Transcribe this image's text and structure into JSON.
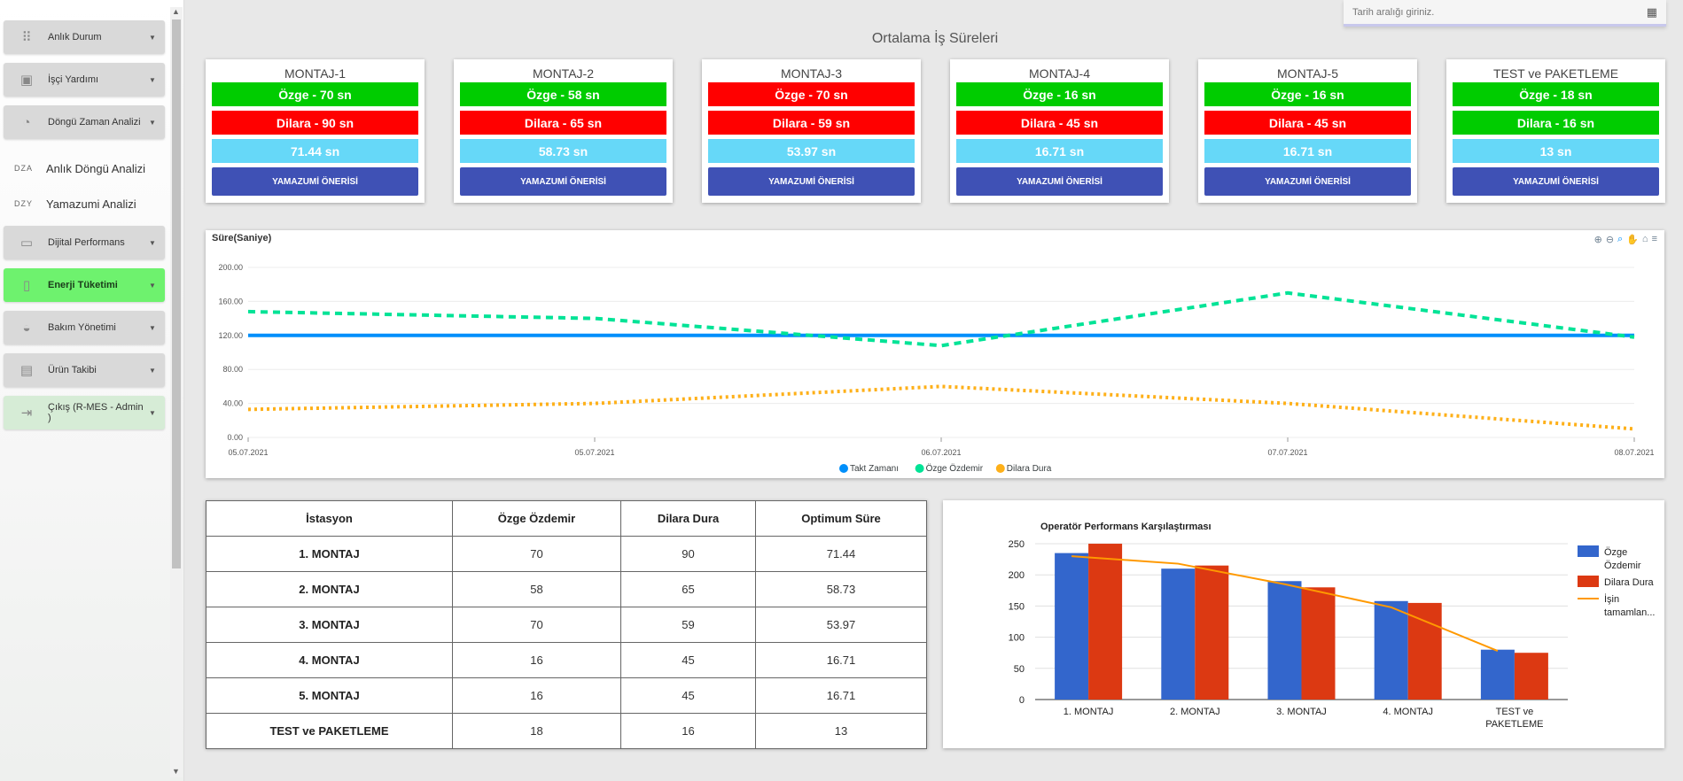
{
  "sidebar": {
    "items": [
      {
        "label": "Anlık Durum",
        "icon": "grid-icon",
        "glyph": "⠿",
        "caret": "▼"
      },
      {
        "label": "İşçi Yardımı",
        "icon": "worker-badge-icon",
        "glyph": "▣",
        "caret": "▼"
      },
      {
        "label": "Döngü Zaman Analizi",
        "icon": "timer-icon",
        "glyph": "◔",
        "caret": "▼"
      },
      {
        "label": "Dijital Performans",
        "icon": "monitor-icon",
        "glyph": "▭",
        "caret": "▼"
      },
      {
        "label": "Enerji Tüketimi",
        "icon": "battery-icon",
        "glyph": "▯",
        "caret": "▼"
      },
      {
        "label": "Bakım Yönetimi",
        "icon": "speedometer-icon",
        "glyph": "◒",
        "caret": "▼"
      },
      {
        "label": "Ürün Takibi",
        "icon": "archive-icon",
        "glyph": "▤",
        "caret": "▼"
      },
      {
        "label": "Çıkış (R-MES - Admin )",
        "icon": "logout-icon",
        "glyph": "⇥",
        "caret": "▼"
      }
    ],
    "sub_items": [
      {
        "abbr": "DZA",
        "label": "Anlık Döngü Analizi"
      },
      {
        "abbr": "DZY",
        "label": "Yamazumi Analizi"
      }
    ]
  },
  "date_input": {
    "placeholder": "Tarih aralığı giriniz.",
    "icon": "calendar-icon",
    "glyph": "▦"
  },
  "page_title": "Ortalama İş Süreleri",
  "stations": [
    {
      "name": "MONTAJ-1",
      "ozge": "Özge - 70 sn",
      "ozge_status": "green",
      "dilara": "Dilara - 90 sn",
      "dilara_status": "red",
      "avg": "71.44 sn",
      "button": "YAMAZUMİ ÖNERİSİ"
    },
    {
      "name": "MONTAJ-2",
      "ozge": "Özge - 58 sn",
      "ozge_status": "green",
      "dilara": "Dilara - 65 sn",
      "dilara_status": "red",
      "avg": "58.73 sn",
      "button": "YAMAZUMİ ÖNERİSİ"
    },
    {
      "name": "MONTAJ-3",
      "ozge": "Özge - 70 sn",
      "ozge_status": "red",
      "dilara": "Dilara - 59 sn",
      "dilara_status": "red",
      "avg": "53.97 sn",
      "button": "YAMAZUMİ ÖNERİSİ"
    },
    {
      "name": "MONTAJ-4",
      "ozge": "Özge - 16 sn",
      "ozge_status": "green",
      "dilara": "Dilara - 45 sn",
      "dilara_status": "red",
      "avg": "16.71 sn",
      "button": "YAMAZUMİ ÖNERİSİ"
    },
    {
      "name": "MONTAJ-5",
      "ozge": "Özge - 16 sn",
      "ozge_status": "green",
      "dilara": "Dilara - 45 sn",
      "dilara_status": "red",
      "avg": "16.71 sn",
      "button": "YAMAZUMİ ÖNERİSİ"
    },
    {
      "name": "TEST ve PAKETLEME",
      "ozge": "Özge - 18 sn",
      "ozge_status": "green",
      "dilara": "Dilara - 16 sn",
      "dilara_status": "green",
      "avg": "13 sn",
      "button": "YAMAZUMİ ÖNERİSİ"
    }
  ],
  "table": {
    "headers": [
      "İstasyon",
      "Özge Özdemir",
      "Dilara Dura",
      "Optimum Süre"
    ],
    "rows": [
      [
        "1. MONTAJ",
        "70",
        "90",
        "71.44"
      ],
      [
        "2. MONTAJ",
        "58",
        "65",
        "58.73"
      ],
      [
        "3. MONTAJ",
        "70",
        "59",
        "53.97"
      ],
      [
        "4. MONTAJ",
        "16",
        "45",
        "16.71"
      ],
      [
        "5. MONTAJ",
        "16",
        "45",
        "16.71"
      ],
      [
        "TEST ve PAKETLEME",
        "18",
        "16",
        "13"
      ]
    ]
  },
  "colors": {
    "green": "#00cc00",
    "red": "#ff0000",
    "cyan": "#66d8f8",
    "button": "#3f51b5",
    "takt": "#008ffb",
    "ozge_line": "#00e396",
    "dilara_line": "#feb019",
    "bar_ozge": "#3366cc",
    "bar_dilara": "#dc3912",
    "bar_line": "#ff9900"
  },
  "chart_data": [
    {
      "type": "line",
      "title": "Süre(Saniye)",
      "x_ticks": [
        "05.07.2021",
        "05.07.2021",
        "06.07.2021",
        "07.07.2021",
        "08.07.2021"
      ],
      "y_ticks": [
        "0.00",
        "40.00",
        "80.00",
        "120.00",
        "160.00",
        "200.00"
      ],
      "ylim": [
        0,
        200
      ],
      "x_positions": [
        0,
        1,
        2,
        3,
        4
      ],
      "series": [
        {
          "name": "Takt Zamanı",
          "values": [
            120,
            120,
            120,
            120,
            120
          ],
          "style": "solid"
        },
        {
          "name": "Özge Özdemir",
          "values": [
            148,
            140,
            108,
            170,
            118
          ],
          "style": "dashed"
        },
        {
          "name": "Dilara Dura",
          "values": [
            33,
            40,
            60,
            40,
            10
          ],
          "style": "dotted"
        }
      ],
      "legend_position": "bottom-center",
      "toolbar": [
        "⊕",
        "⊖",
        "⌕",
        "✋",
        "⌂",
        "≡"
      ]
    },
    {
      "type": "bar",
      "title": "Operatör Performans Karşılaştırması",
      "categories": [
        "1. MONTAJ",
        "2. MONTAJ",
        "3. MONTAJ",
        "4. MONTAJ",
        "TEST ve PAKETLEME"
      ],
      "category_lines": [
        [
          "1. MONTAJ"
        ],
        [
          "2. MONTAJ"
        ],
        [
          "3. MONTAJ"
        ],
        [
          "4. MONTAJ"
        ],
        [
          "TEST ve",
          "PAKETLEME"
        ]
      ],
      "series": [
        {
          "name": "Özge Özdemir",
          "legend_lines": [
            "Özge",
            "Özdemir"
          ],
          "kind": "bar",
          "values": [
            235,
            210,
            190,
            158,
            80
          ]
        },
        {
          "name": "Dilara Dura",
          "legend_lines": [
            "Dilara Dura"
          ],
          "kind": "bar",
          "values": [
            250,
            215,
            180,
            155,
            75
          ]
        },
        {
          "name": "İşin tamamlanma",
          "legend_lines": [
            "İşin",
            "tamamlan..."
          ],
          "kind": "line",
          "values": [
            230,
            218,
            185,
            148,
            78
          ]
        }
      ],
      "y_ticks": [
        0,
        50,
        100,
        150,
        200,
        250
      ],
      "ylim": [
        0,
        260
      ],
      "legend_position": "right"
    }
  ]
}
